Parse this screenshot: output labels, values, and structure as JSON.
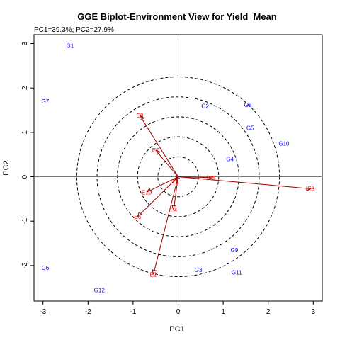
{
  "chart_data": {
    "type": "scatter",
    "title": "GGE Biplot-Environment View for Yield_Mean",
    "subtitle": "PC1=39.3%; PC2=27.9%",
    "xlabel": "PC1",
    "ylabel": "PC2",
    "xlim": [
      -3.2,
      3.2
    ],
    "ylim": [
      -2.8,
      3.2
    ],
    "x_ticks": [
      -3,
      -2,
      -1,
      0,
      1,
      2,
      3
    ],
    "y_ticks": [
      -2,
      -1,
      0,
      1,
      2,
      3
    ],
    "x_tick_labels": [
      "-3",
      "-2",
      "-1",
      "0",
      "1",
      "2",
      "3"
    ],
    "y_tick_labels": [
      "-2",
      "-1",
      "0",
      "1",
      "2",
      "3"
    ],
    "reference_lines": {
      "color": "#00cc00",
      "x": 0,
      "y": 0
    },
    "concentric_circles": {
      "center": [
        0.0,
        0.0
      ],
      "radii": [
        0.45,
        0.9,
        1.35,
        1.8,
        2.25
      ],
      "style": "dashed"
    },
    "genotypes": {
      "color": "#0000ff",
      "points": [
        {
          "label": "G1",
          "x": -2.4,
          "y": 2.95
        },
        {
          "label": "G2",
          "x": 0.6,
          "y": 1.6
        },
        {
          "label": "G3",
          "x": 0.45,
          "y": -2.1
        },
        {
          "label": "G4",
          "x": 1.15,
          "y": 0.4
        },
        {
          "label": "G5",
          "x": 1.6,
          "y": 1.1
        },
        {
          "label": "G6",
          "x": -2.95,
          "y": -2.05
        },
        {
          "label": "G7",
          "x": -2.95,
          "y": 1.7
        },
        {
          "label": "G8",
          "x": 1.55,
          "y": 1.62
        },
        {
          "label": "G9",
          "x": 1.25,
          "y": -1.65
        },
        {
          "label": "G10",
          "x": 2.35,
          "y": 0.75
        },
        {
          "label": "G11",
          "x": 1.3,
          "y": -2.15
        },
        {
          "label": "G12",
          "x": -1.75,
          "y": -2.55
        }
      ]
    },
    "environments": {
      "color": "#ff0000",
      "vector_color": "#990000",
      "origin": [
        0.0,
        0.0
      ],
      "points": [
        {
          "label": "E1",
          "x": -0.05,
          "y": -0.1
        },
        {
          "label": "E2",
          "x": -0.55,
          "y": -2.2
        },
        {
          "label": "E3",
          "x": 2.95,
          "y": -0.27
        },
        {
          "label": "E4",
          "x": -0.1,
          "y": -0.75
        },
        {
          "label": "E5",
          "x": 0.75,
          "y": -0.02
        },
        {
          "label": "E6",
          "x": -0.9,
          "y": -0.9
        },
        {
          "label": "E7",
          "x": -0.5,
          "y": 0.6
        },
        {
          "label": "E8",
          "x": -0.85,
          "y": 1.38
        },
        {
          "label": "E10",
          "x": -0.7,
          "y": -0.35
        }
      ]
    }
  }
}
